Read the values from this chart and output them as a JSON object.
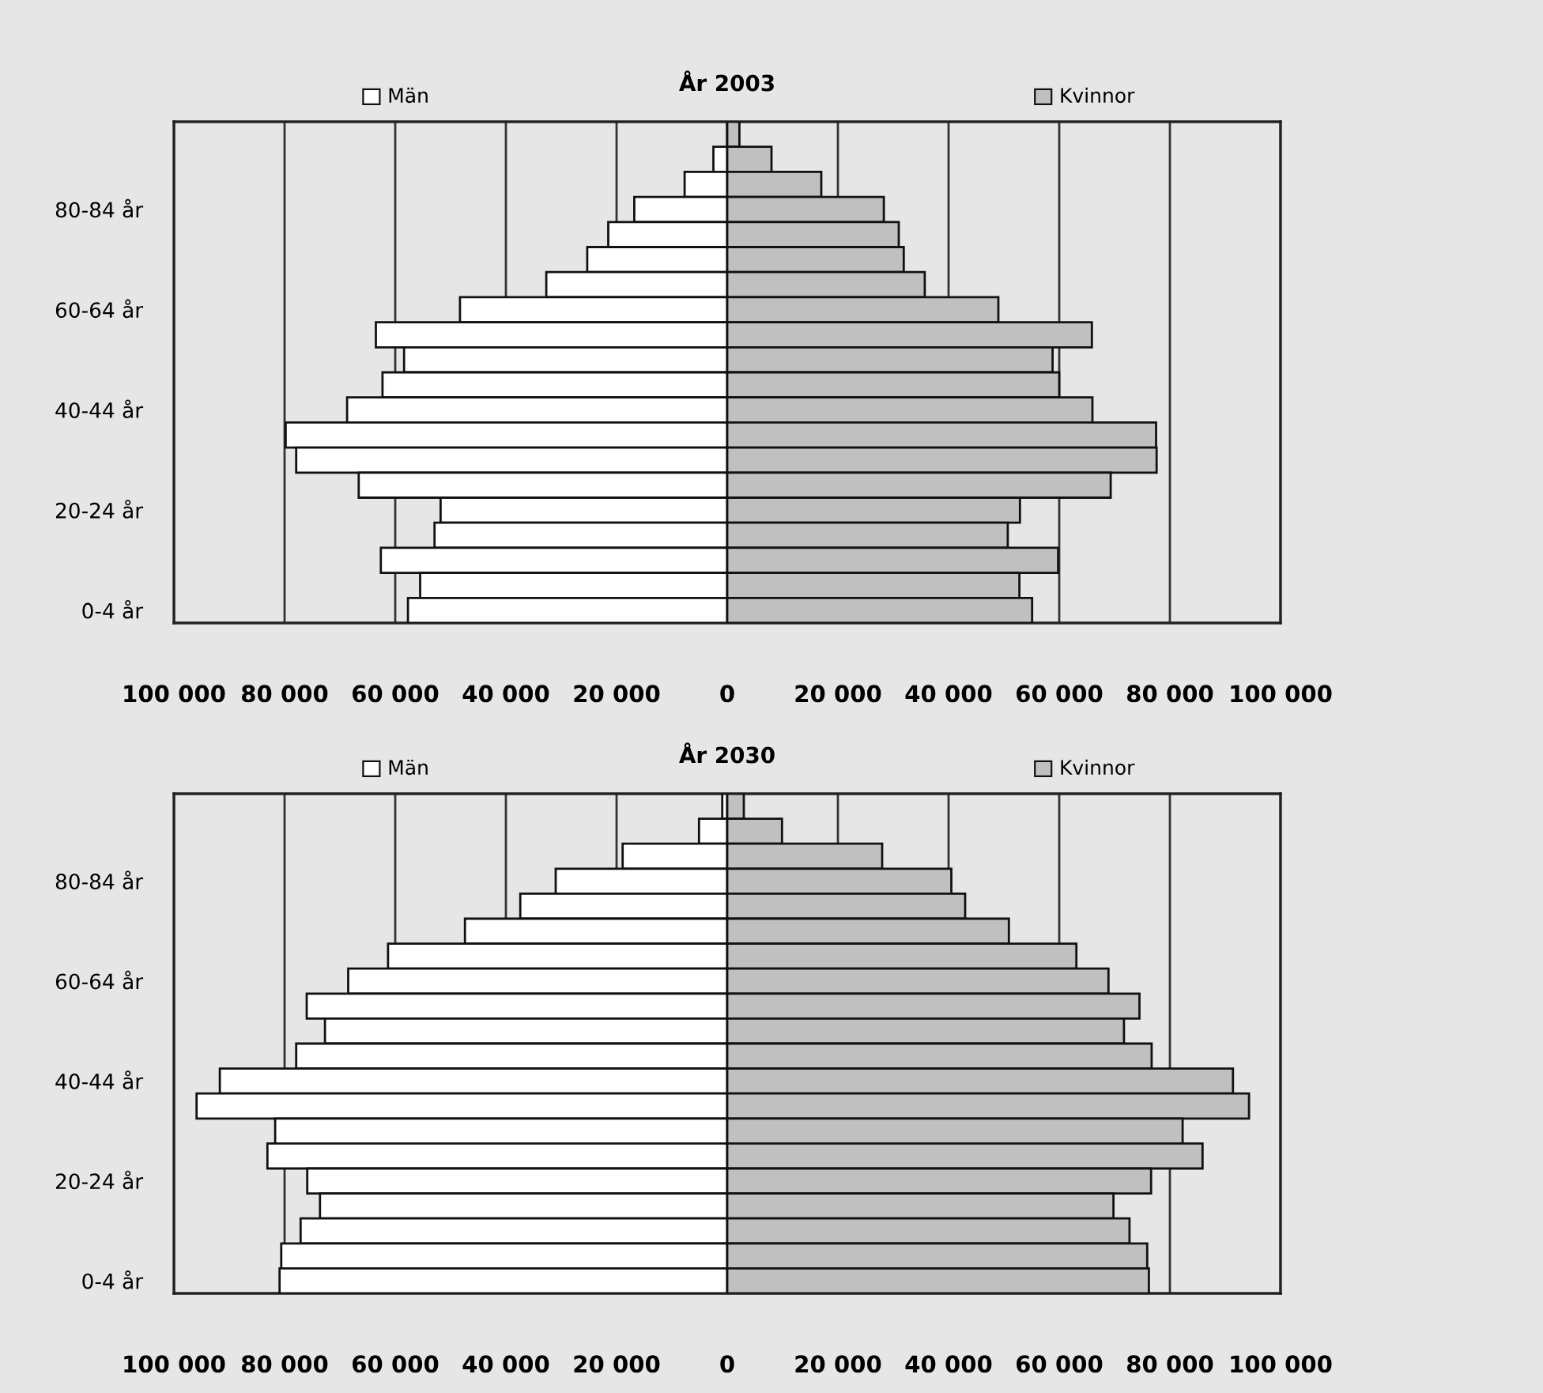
{
  "chart_data": [
    {
      "type": "bar",
      "orientation": "horizontal",
      "stacked": true,
      "legend": "top",
      "title": "År 2003",
      "categories": [
        null,
        null,
        null,
        "80-84 år",
        null,
        null,
        null,
        "60-64 år",
        null,
        null,
        null,
        "40-44 år",
        null,
        null,
        null,
        "20-24 år",
        null,
        null,
        null,
        "0-4 år"
      ],
      "series": [
        {
          "name": "Män",
          "color": "#ffffff",
          "values": [
            null,
            -2500,
            -7700,
            -16800,
            -21500,
            -25300,
            -32700,
            -48300,
            -63500,
            -58400,
            -62300,
            -68700,
            -79800,
            -77900,
            -66600,
            -51800,
            -52900,
            -62600,
            -55500,
            -57700
          ]
        },
        {
          "name": "Kvinnor",
          "color": "#c0c0c0",
          "values": [
            2200,
            8000,
            17000,
            28300,
            31000,
            31900,
            35700,
            49000,
            65900,
            58800,
            60000,
            66000,
            77500,
            77600,
            69300,
            52900,
            50700,
            59800,
            52800,
            55100
          ]
        }
      ],
      "xlim": [
        -100000,
        100000
      ],
      "xticks": [
        {
          "value": -100000,
          "label": "100 000"
        },
        {
          "value": -80000,
          "label": "80 000"
        },
        {
          "value": -60000,
          "label": "60 000"
        },
        {
          "value": -40000,
          "label": "40 000"
        },
        {
          "value": -20000,
          "label": "20 000"
        },
        0,
        {
          "value": 20000,
          "label": "20 000"
        },
        {
          "value": 40000,
          "label": "40 000"
        },
        {
          "value": 60000,
          "label": "60 000"
        },
        {
          "value": 80000,
          "label": "80 000"
        },
        {
          "value": 100000,
          "label": "100 000"
        }
      ],
      "grid": "x"
    },
    {
      "type": "bar",
      "orientation": "horizontal",
      "stacked": true,
      "legend": "top",
      "title": "År 2030",
      "categories": [
        null,
        null,
        null,
        "80-84 år",
        null,
        null,
        null,
        "60-64 år",
        null,
        null,
        null,
        "40-44 år",
        null,
        null,
        null,
        "20-24 år",
        null,
        null,
        null,
        "0-4 år"
      ],
      "series": [
        {
          "name": "Män",
          "color": "#ffffff",
          "values": [
            -900,
            -5100,
            -18900,
            -31000,
            -37400,
            -47400,
            -61300,
            -68500,
            -76000,
            -72700,
            -77900,
            -91700,
            -95900,
            -81700,
            -83100,
            -75900,
            -73600,
            -77100,
            -80600,
            -80900
          ]
        },
        {
          "name": "Kvinnor",
          "color": "#c0c0c0",
          "values": [
            3000,
            9900,
            28000,
            40500,
            43000,
            50900,
            63100,
            68900,
            74500,
            71700,
            76700,
            91400,
            94300,
            82300,
            85900,
            76600,
            69800,
            72700,
            75900,
            76200
          ]
        }
      ],
      "xlim": [
        -100000,
        100000
      ],
      "xticks": [
        {
          "value": -100000,
          "label": "100 000"
        },
        {
          "value": -80000,
          "label": "80 000"
        },
        {
          "value": -60000,
          "label": "60 000"
        },
        {
          "value": -40000,
          "label": "40 000"
        },
        {
          "value": -20000,
          "label": "20 000"
        },
        0,
        {
          "value": 20000,
          "label": "20 000"
        },
        {
          "value": 40000,
          "label": "40 000"
        },
        {
          "value": 60000,
          "label": "60 000"
        },
        {
          "value": 80000,
          "label": "80 000"
        },
        {
          "value": 100000,
          "label": "100 000"
        }
      ],
      "grid": "x"
    }
  ]
}
